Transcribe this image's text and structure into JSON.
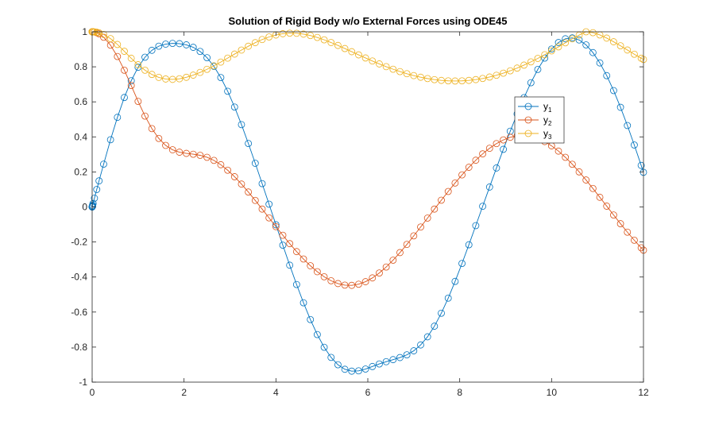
{
  "chart_data": {
    "type": "line",
    "title": "Solution of Rigid Body w/o External Forces using ODE45",
    "xlabel": "",
    "ylabel": "",
    "xlim": [
      0,
      12
    ],
    "ylim": [
      -1,
      1
    ],
    "xticks": [
      0,
      2,
      4,
      6,
      8,
      10,
      12
    ],
    "xtick_labels": [
      "0",
      "2",
      "4",
      "6",
      "8",
      "10",
      "12"
    ],
    "yticks": [
      -1,
      -0.8,
      -0.6,
      -0.4,
      -0.2,
      0,
      0.2,
      0.4,
      0.6,
      0.8,
      1
    ],
    "ytick_labels": [
      "-1",
      "-0.8",
      "-0.6",
      "-0.4",
      "-0.2",
      "0",
      "0.2",
      "0.4",
      "0.6",
      "0.8",
      "1"
    ],
    "grid": false,
    "legend_position": "right",
    "marker": "circle",
    "x": [
      0,
      0.0001,
      0.0005,
      0.001,
      0.005,
      0.01,
      0.02,
      0.05,
      0.1,
      0.15,
      0.25,
      0.4,
      0.55,
      0.7,
      0.85,
      1.0,
      1.15,
      1.3,
      1.45,
      1.6,
      1.75,
      1.9,
      2.05,
      2.2,
      2.35,
      2.5,
      2.65,
      2.8,
      2.95,
      3.1,
      3.25,
      3.4,
      3.55,
      3.7,
      3.85,
      4.0,
      4.15,
      4.3,
      4.45,
      4.6,
      4.75,
      4.9,
      5.05,
      5.2,
      5.35,
      5.5,
      5.65,
      5.8,
      5.95,
      6.1,
      6.25,
      6.4,
      6.55,
      6.7,
      6.85,
      7.0,
      7.15,
      7.3,
      7.45,
      7.6,
      7.75,
      7.9,
      8.05,
      8.2,
      8.35,
      8.5,
      8.65,
      8.8,
      8.95,
      9.1,
      9.25,
      9.4,
      9.55,
      9.7,
      9.85,
      10.0,
      10.15,
      10.3,
      10.45,
      10.6,
      10.75,
      10.9,
      11.05,
      11.2,
      11.35,
      11.5,
      11.65,
      11.8,
      11.95,
      12.0
    ],
    "series": [
      {
        "name": "y",
        "subscript": "1",
        "color": "#0072BD",
        "values": [
          0,
          0.0001,
          0.0005,
          0.001,
          0.005,
          0.01,
          0.02,
          0.05,
          0.0998,
          0.1489,
          0.2445,
          0.3837,
          0.5116,
          0.6249,
          0.7206,
          0.7973,
          0.8549,
          0.8943,
          0.9178,
          0.9296,
          0.9338,
          0.9323,
          0.9254,
          0.9114,
          0.8878,
          0.8522,
          0.8028,
          0.7387,
          0.6606,
          0.5703,
          0.4701,
          0.3623,
          0.2493,
          0.1333,
          0.0159,
          -0.1017,
          -0.2183,
          -0.3325,
          -0.4426,
          -0.5469,
          -0.6429,
          -0.7283,
          -0.8009,
          -0.8588,
          -0.9008,
          -0.9266,
          -0.9373,
          -0.9355,
          -0.9252,
          -0.9108,
          -0.8962,
          -0.8833,
          -0.8716,
          -0.8596,
          -0.8441,
          -0.8212,
          -0.7877,
          -0.7412,
          -0.6806,
          -0.6065,
          -0.5205,
          -0.425,
          -0.3226,
          -0.2158,
          -0.1065,
          0.0038,
          0.1137,
          0.2225,
          0.329,
          0.4324,
          0.5312,
          0.624,
          0.7093,
          0.7851,
          0.8498,
          0.9014,
          0.9386,
          0.96,
          0.9651,
          0.9534,
          0.9253,
          0.8812,
          0.8222,
          0.7496,
          0.6645,
          0.569,
          0.4649,
          0.3537,
          0.2373,
          0.1978
        ]
      },
      {
        "name": "y",
        "subscript": "2",
        "color": "#D95319",
        "values": [
          1,
          1,
          1,
          1,
          1,
          1,
          0.9998,
          0.9988,
          0.995,
          0.9888,
          0.9689,
          0.9235,
          0.859,
          0.7807,
          0.6933,
          0.6027,
          0.5188,
          0.4473,
          0.3912,
          0.3514,
          0.3264,
          0.3127,
          0.3058,
          0.3012,
          0.2948,
          0.2836,
          0.2659,
          0.2412,
          0.2097,
          0.1725,
          0.1306,
          0.0852,
          0.0373,
          -0.0121,
          -0.0623,
          -0.1124,
          -0.1617,
          -0.2094,
          -0.2548,
          -0.2971,
          -0.3357,
          -0.3697,
          -0.3985,
          -0.4212,
          -0.4373,
          -0.4462,
          -0.4475,
          -0.4409,
          -0.4266,
          -0.4051,
          -0.3769,
          -0.3428,
          -0.3037,
          -0.2604,
          -0.2139,
          -0.165,
          -0.1146,
          -0.0634,
          -0.0121,
          0.0387,
          0.0885,
          0.1368,
          0.183,
          0.2265,
          0.2667,
          0.3031,
          0.3349,
          0.3616,
          0.3827,
          0.3977,
          0.4063,
          0.4082,
          0.4033,
          0.3916,
          0.3734,
          0.3489,
          0.3188,
          0.2835,
          0.2438,
          0.2003,
          0.1539,
          0.1053,
          0.0553,
          0.0047,
          -0.0458,
          -0.0956,
          -0.1439,
          -0.1899,
          -0.233,
          -0.2466
        ]
      },
      {
        "name": "y",
        "subscript": "3",
        "color": "#EDB120",
        "values": [
          1,
          1,
          1,
          1,
          1,
          1,
          0.9999,
          0.9994,
          0.9975,
          0.9944,
          0.9846,
          0.9609,
          0.9276,
          0.8887,
          0.8489,
          0.8121,
          0.7807,
          0.7564,
          0.7397,
          0.7305,
          0.7281,
          0.7317,
          0.7402,
          0.7526,
          0.768,
          0.7858,
          0.8056,
          0.827,
          0.8496,
          0.8727,
          0.8956,
          0.9176,
          0.9379,
          0.9557,
          0.9705,
          0.9817,
          0.989,
          0.9922,
          0.9914,
          0.9867,
          0.9786,
          0.9676,
          0.9541,
          0.9387,
          0.922,
          0.9044,
          0.8864,
          0.8683,
          0.8505,
          0.8332,
          0.8166,
          0.8009,
          0.7863,
          0.7728,
          0.7607,
          0.7499,
          0.7407,
          0.733,
          0.7269,
          0.7225,
          0.7199,
          0.719,
          0.7199,
          0.7226,
          0.7271,
          0.7335,
          0.7417,
          0.7518,
          0.7637,
          0.7773,
          0.7927,
          0.8097,
          0.8282,
          0.8481,
          0.8692,
          0.8913,
          0.914,
          0.937,
          0.9596,
          0.981,
          1.0,
          0.995,
          0.982,
          0.964,
          0.943,
          0.92,
          0.896,
          0.872,
          0.849,
          0.842
        ]
      }
    ]
  }
}
